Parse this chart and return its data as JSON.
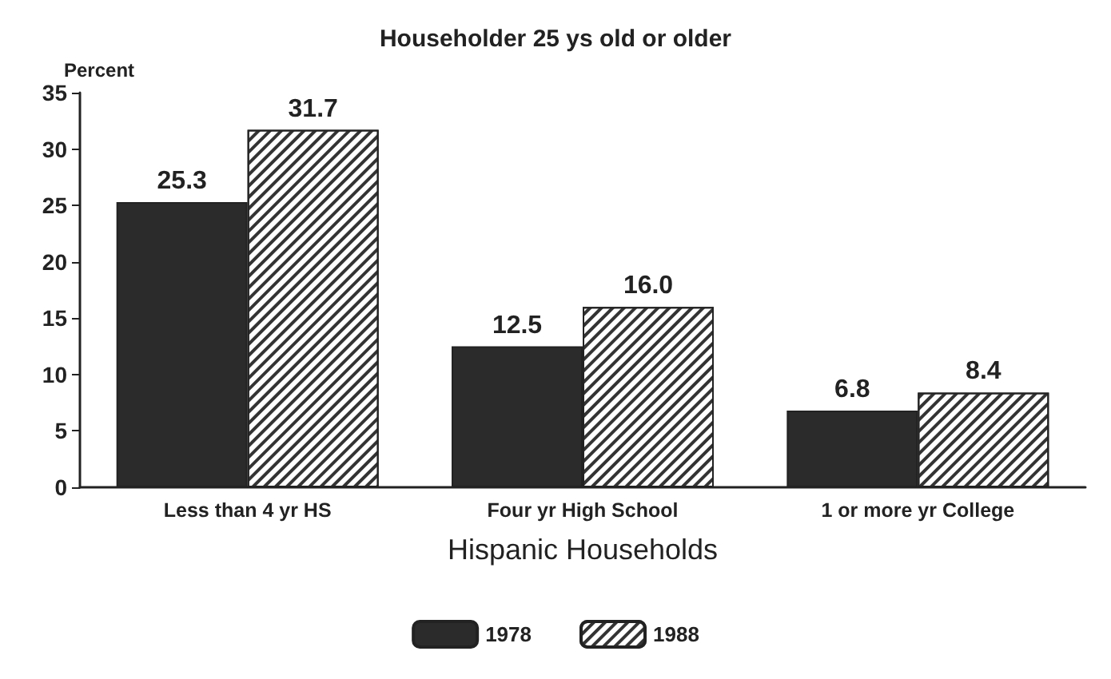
{
  "chart_data": {
    "type": "bar",
    "title": "Householder 25 ys old or older",
    "ylabel": "Percent",
    "xlabel": "Hispanic Households",
    "categories": [
      "Less than 4 yr HS",
      "Four yr High School",
      "1 or more yr College"
    ],
    "series": [
      {
        "name": "1978",
        "color": "#2b2b2b",
        "values": [
          25.3,
          12.5,
          6.8
        ],
        "value_labels": [
          "25.3",
          "12.5",
          "6.8"
        ]
      },
      {
        "name": "1988",
        "color": "#ffffff",
        "values": [
          31.7,
          16.0,
          8.4
        ],
        "value_labels": [
          "31.7",
          "16.0",
          "8.4"
        ]
      }
    ],
    "ylim": [
      0,
      35
    ],
    "yticks": [
      0,
      5,
      10,
      15,
      20,
      25,
      30,
      35
    ],
    "grid": false,
    "legend": "bottom"
  }
}
